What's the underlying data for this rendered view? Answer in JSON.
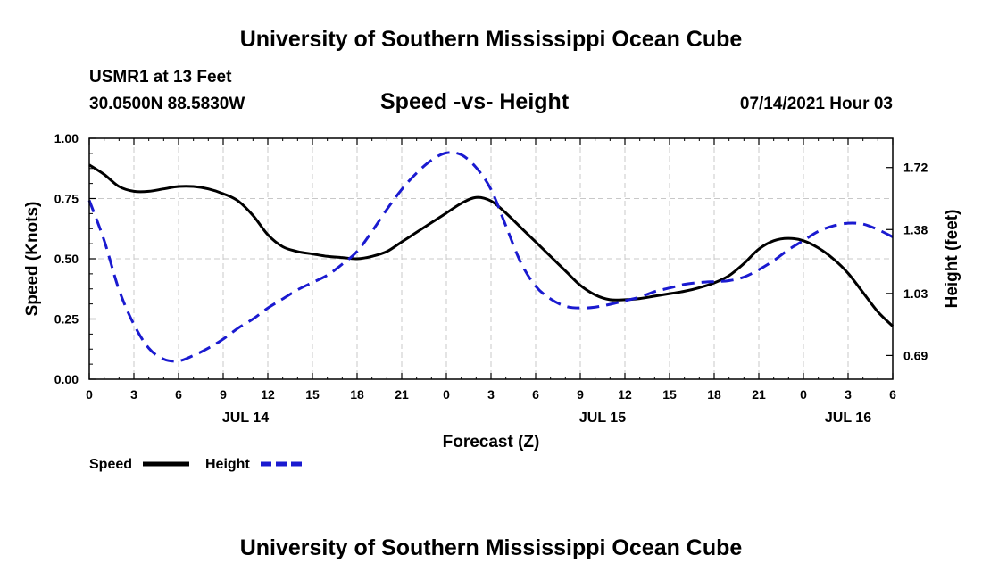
{
  "header": {
    "title": "University of Southern Mississippi Ocean Cube",
    "station": "USMR1 at 13 Feet",
    "coords": "30.0500N  88.5830W",
    "date": "07/14/2021 Hour 03"
  },
  "footer": {
    "title": "University of Southern Mississippi Ocean Cube"
  },
  "colors": {
    "speed": "#000000",
    "height": "#1a1ad0",
    "grid": "#c8c8c8"
  },
  "chart_data": {
    "type": "line",
    "title": "Speed -vs- Height",
    "xlabel": "Forecast (Z)",
    "ylabel": "Speed (Knots)",
    "y2label": "Height (feet)",
    "x_ticks": [
      "0",
      "3",
      "6",
      "9",
      "12",
      "15",
      "18",
      "21",
      "0",
      "3",
      "6",
      "9",
      "12",
      "15",
      "18",
      "21",
      "0",
      "3",
      "6"
    ],
    "date_labels": [
      {
        "label": "JUL 14",
        "tick_index": 3.5
      },
      {
        "label": "JUL 15",
        "tick_index": 11.5
      },
      {
        "label": "JUL 16",
        "tick_index": 17
      }
    ],
    "xlim": [
      0,
      54
    ],
    "ylim": [
      0,
      1.0
    ],
    "y_ticks": [
      "0.00",
      "0.25",
      "0.50",
      "0.75",
      "1.00"
    ],
    "y2lim": [
      0.56,
      1.88
    ],
    "y2_ticks": [
      "0.69",
      "1.03",
      "1.38",
      "1.72"
    ],
    "legend": [
      "Speed",
      "Height"
    ],
    "series": [
      {
        "name": "Speed",
        "axis": "left",
        "style": "solid",
        "x": [
          0,
          1,
          2,
          3,
          4,
          5,
          6,
          7,
          8,
          9,
          10,
          11,
          12,
          13,
          14,
          15,
          16,
          17,
          18,
          19,
          20,
          21,
          22,
          23,
          24,
          25,
          26,
          27,
          28,
          29,
          30,
          31,
          32,
          33,
          34,
          35,
          36,
          37,
          38,
          39,
          40,
          41,
          42,
          43,
          44,
          45,
          46,
          47,
          48,
          49,
          50,
          51,
          52,
          53,
          54
        ],
        "values": [
          0.89,
          0.85,
          0.8,
          0.78,
          0.78,
          0.79,
          0.8,
          0.8,
          0.79,
          0.77,
          0.74,
          0.68,
          0.6,
          0.55,
          0.53,
          0.52,
          0.51,
          0.505,
          0.5,
          0.51,
          0.53,
          0.57,
          0.61,
          0.65,
          0.69,
          0.73,
          0.755,
          0.74,
          0.69,
          0.63,
          0.57,
          0.51,
          0.45,
          0.39,
          0.35,
          0.33,
          0.33,
          0.335,
          0.345,
          0.355,
          0.365,
          0.38,
          0.4,
          0.43,
          0.48,
          0.54,
          0.575,
          0.585,
          0.575,
          0.545,
          0.5,
          0.44,
          0.36,
          0.28,
          0.22
        ]
      },
      {
        "name": "Height",
        "axis": "right",
        "style": "dashed",
        "x": [
          0,
          1,
          2,
          3,
          4,
          5,
          6,
          7,
          8,
          9,
          10,
          11,
          12,
          13,
          14,
          15,
          16,
          17,
          18,
          19,
          20,
          21,
          22,
          23,
          24,
          25,
          26,
          27,
          28,
          29,
          30,
          31,
          32,
          33,
          34,
          35,
          36,
          37,
          38,
          39,
          40,
          41,
          42,
          43,
          44,
          45,
          46,
          47,
          48,
          49,
          50,
          51,
          52,
          53,
          54
        ],
        "values": [
          1.54,
          1.32,
          1.05,
          0.86,
          0.73,
          0.67,
          0.66,
          0.69,
          0.73,
          0.78,
          0.84,
          0.89,
          0.95,
          1.0,
          1.05,
          1.09,
          1.13,
          1.19,
          1.26,
          1.37,
          1.49,
          1.6,
          1.69,
          1.76,
          1.8,
          1.79,
          1.72,
          1.6,
          1.4,
          1.2,
          1.07,
          1.0,
          0.96,
          0.95,
          0.955,
          0.97,
          0.99,
          1.01,
          1.04,
          1.06,
          1.08,
          1.09,
          1.095,
          1.1,
          1.12,
          1.16,
          1.21,
          1.27,
          1.32,
          1.37,
          1.4,
          1.415,
          1.41,
          1.38,
          1.34
        ]
      }
    ]
  }
}
